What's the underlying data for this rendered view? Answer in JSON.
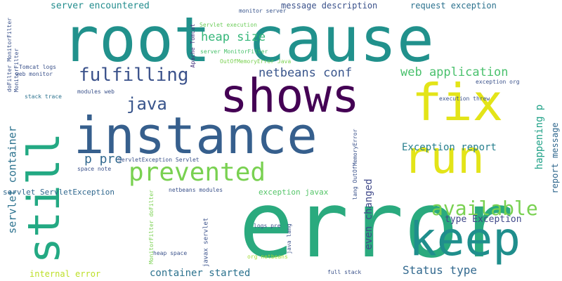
{
  "words": [
    {
      "text": "root cause",
      "color": "#21918c"
    },
    {
      "text": "error",
      "color": "#2aaa7e"
    },
    {
      "text": "instance",
      "color": "#365f8d"
    },
    {
      "text": "shows",
      "color": "#440154"
    },
    {
      "text": "keep",
      "color": "#1f8e8c"
    },
    {
      "text": "still",
      "color": "#23a983"
    },
    {
      "text": "fix",
      "color": "#e3e418"
    },
    {
      "text": "run",
      "color": "#e3e418"
    },
    {
      "text": "prevented",
      "color": "#79d151"
    },
    {
      "text": "fulfilling",
      "color": "#3b528b"
    },
    {
      "text": "available",
      "color": "#79d151"
    },
    {
      "text": "java",
      "color": "#39558c"
    },
    {
      "text": "netbeans conf",
      "color": "#39558c"
    },
    {
      "text": "web application",
      "color": "#4ac16d"
    },
    {
      "text": "p pre",
      "color": "#31688e"
    },
    {
      "text": "heap size",
      "color": "#34b679"
    },
    {
      "text": "Exception report",
      "color": "#277f8e"
    },
    {
      "text": "server encountered",
      "color": "#228c8d"
    },
    {
      "text": "message description",
      "color": "#3b528b"
    },
    {
      "text": "request exception",
      "color": "#2c728e"
    },
    {
      "text": "container started",
      "color": "#2c728e"
    },
    {
      "text": "type Exception",
      "color": "#3f4889"
    },
    {
      "text": "Status type",
      "color": "#31688e"
    },
    {
      "text": "servlet container",
      "color": "#2c728e"
    },
    {
      "text": "servlet ServletException",
      "color": "#31688e"
    },
    {
      "text": "happening p",
      "color": "#1fa187"
    },
    {
      "text": "report message",
      "color": "#31688e"
    },
    {
      "text": "even changed",
      "color": "#3f4889"
    },
    {
      "text": "internal error",
      "color": "#bddf26"
    },
    {
      "text": "exception javax",
      "color": "#54c568"
    },
    {
      "text": "netbeans modules",
      "color": "#3b528b"
    },
    {
      "text": "ServletException Servlet",
      "color": "#3b528b"
    },
    {
      "text": "server MonitorFilter",
      "color": "#4ac16d"
    },
    {
      "text": "OutOfMemoryError Java",
      "color": "#7ad151"
    },
    {
      "text": "Servlet execution",
      "color": "#6ccd5a"
    },
    {
      "text": "monitor server",
      "color": "#39558c"
    },
    {
      "text": "Apache Tomcat",
      "color": "#46327e"
    },
    {
      "text": "execution threw",
      "color": "#3b528b"
    },
    {
      "text": "exception org",
      "color": "#3b528b"
    },
    {
      "text": "modules web",
      "color": "#3b528b"
    },
    {
      "text": "stack trace",
      "color": "#2c728e"
    },
    {
      "text": "web monitor",
      "color": "#3b528b"
    },
    {
      "text": "Tomcat logs",
      "color": "#3b528b"
    },
    {
      "text": "space note",
      "color": "#3b528b"
    },
    {
      "text": "heap space",
      "color": "#3b528b"
    },
    {
      "text": "logs pre",
      "color": "#3b528b"
    },
    {
      "text": "java lang",
      "color": "#3b528b"
    },
    {
      "text": "org netbeans",
      "color": "#a5db36"
    },
    {
      "text": "full stack",
      "color": "#3b528b"
    },
    {
      "text": "javax servlet",
      "color": "#3b528b"
    },
    {
      "text": "lang OutOfMemoryError",
      "color": "#3b528b"
    },
    {
      "text": "MonitorFilter doFilter",
      "color": "#7ad151"
    },
    {
      "text": "doFilter MonitorFilter",
      "color": "#3b528b"
    },
    {
      "text": "MonitorFilter",
      "color": "#3b528b"
    }
  ]
}
